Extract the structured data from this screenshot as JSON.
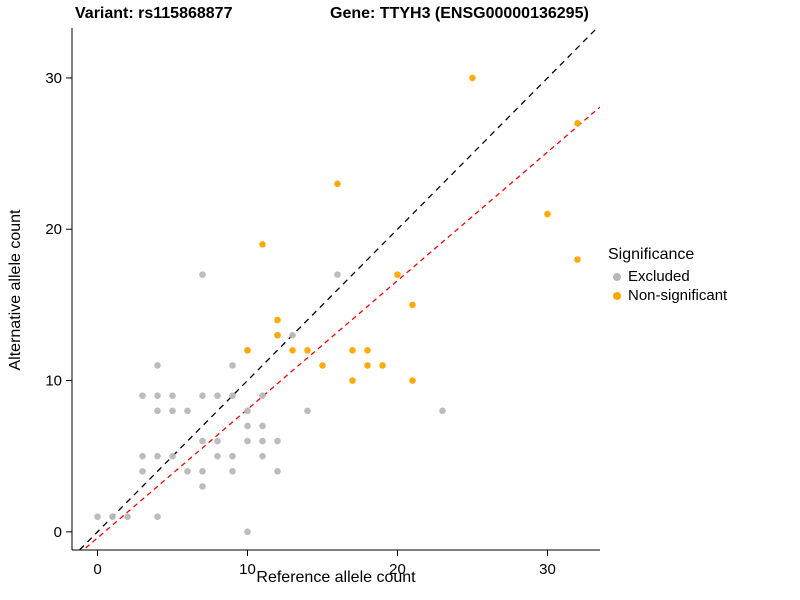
{
  "titles": {
    "variant": "Variant: rs115868877",
    "gene": "Gene: TTYH3 (ENSG00000136295)"
  },
  "chart_data": {
    "type": "scatter",
    "xlabel": "Reference allele count",
    "ylabel": "Alternative allele count",
    "xlim": [
      -1.7,
      33.5
    ],
    "ylim": [
      -1.2,
      33.3
    ],
    "xticks": [
      0,
      10,
      20,
      30
    ],
    "yticks": [
      0,
      10,
      20,
      30
    ],
    "grid": false,
    "legend": {
      "title": "Significance",
      "position": "right",
      "items": [
        {
          "label": "Excluded",
          "color": "#b8b8b8"
        },
        {
          "label": "Non-significant",
          "color": "#FFA500"
        }
      ]
    },
    "series": [
      {
        "name": "Excluded",
        "color": "#b8b8b8",
        "points": [
          [
            0,
            1
          ],
          [
            1,
            1
          ],
          [
            2,
            1
          ],
          [
            3,
            4
          ],
          [
            3,
            5
          ],
          [
            3,
            9
          ],
          [
            4,
            1
          ],
          [
            4,
            5
          ],
          [
            4,
            8
          ],
          [
            4,
            9
          ],
          [
            4,
            11
          ],
          [
            5,
            5
          ],
          [
            5,
            8
          ],
          [
            5,
            9
          ],
          [
            6,
            4
          ],
          [
            6,
            8
          ],
          [
            7,
            3
          ],
          [
            7,
            4
          ],
          [
            7,
            6
          ],
          [
            7,
            9
          ],
          [
            7,
            17
          ],
          [
            8,
            5
          ],
          [
            8,
            6
          ],
          [
            8,
            9
          ],
          [
            9,
            4
          ],
          [
            9,
            5
          ],
          [
            9,
            9
          ],
          [
            9,
            11
          ],
          [
            10,
            0
          ],
          [
            10,
            6
          ],
          [
            10,
            7
          ],
          [
            10,
            8
          ],
          [
            10,
            12
          ],
          [
            11,
            5
          ],
          [
            11,
            6
          ],
          [
            11,
            7
          ],
          [
            11,
            9
          ],
          [
            12,
            4
          ],
          [
            12,
            6
          ],
          [
            12,
            13
          ],
          [
            13,
            13
          ],
          [
            14,
            8
          ],
          [
            16,
            17
          ],
          [
            23,
            8
          ]
        ]
      },
      {
        "name": "Non-significant",
        "color": "#FFA500",
        "points": [
          [
            10,
            12
          ],
          [
            11,
            19
          ],
          [
            12,
            13
          ],
          [
            12,
            14
          ],
          [
            13,
            12
          ],
          [
            14,
            12
          ],
          [
            15,
            11
          ],
          [
            16,
            23
          ],
          [
            17,
            10
          ],
          [
            17,
            12
          ],
          [
            18,
            11
          ],
          [
            18,
            12
          ],
          [
            19,
            11
          ],
          [
            20,
            17
          ],
          [
            21,
            10
          ],
          [
            21,
            15
          ],
          [
            25,
            30
          ],
          [
            30,
            21
          ],
          [
            32,
            18
          ],
          [
            32,
            27
          ]
        ]
      }
    ],
    "lines": [
      {
        "name": "identity",
        "slope": 1,
        "intercept": 0,
        "color": "#000000",
        "dash": "6,5"
      },
      {
        "name": "fit",
        "slope": 0.85,
        "intercept": -0.4,
        "color": "#FF0000",
        "dash": "5,4"
      }
    ]
  }
}
